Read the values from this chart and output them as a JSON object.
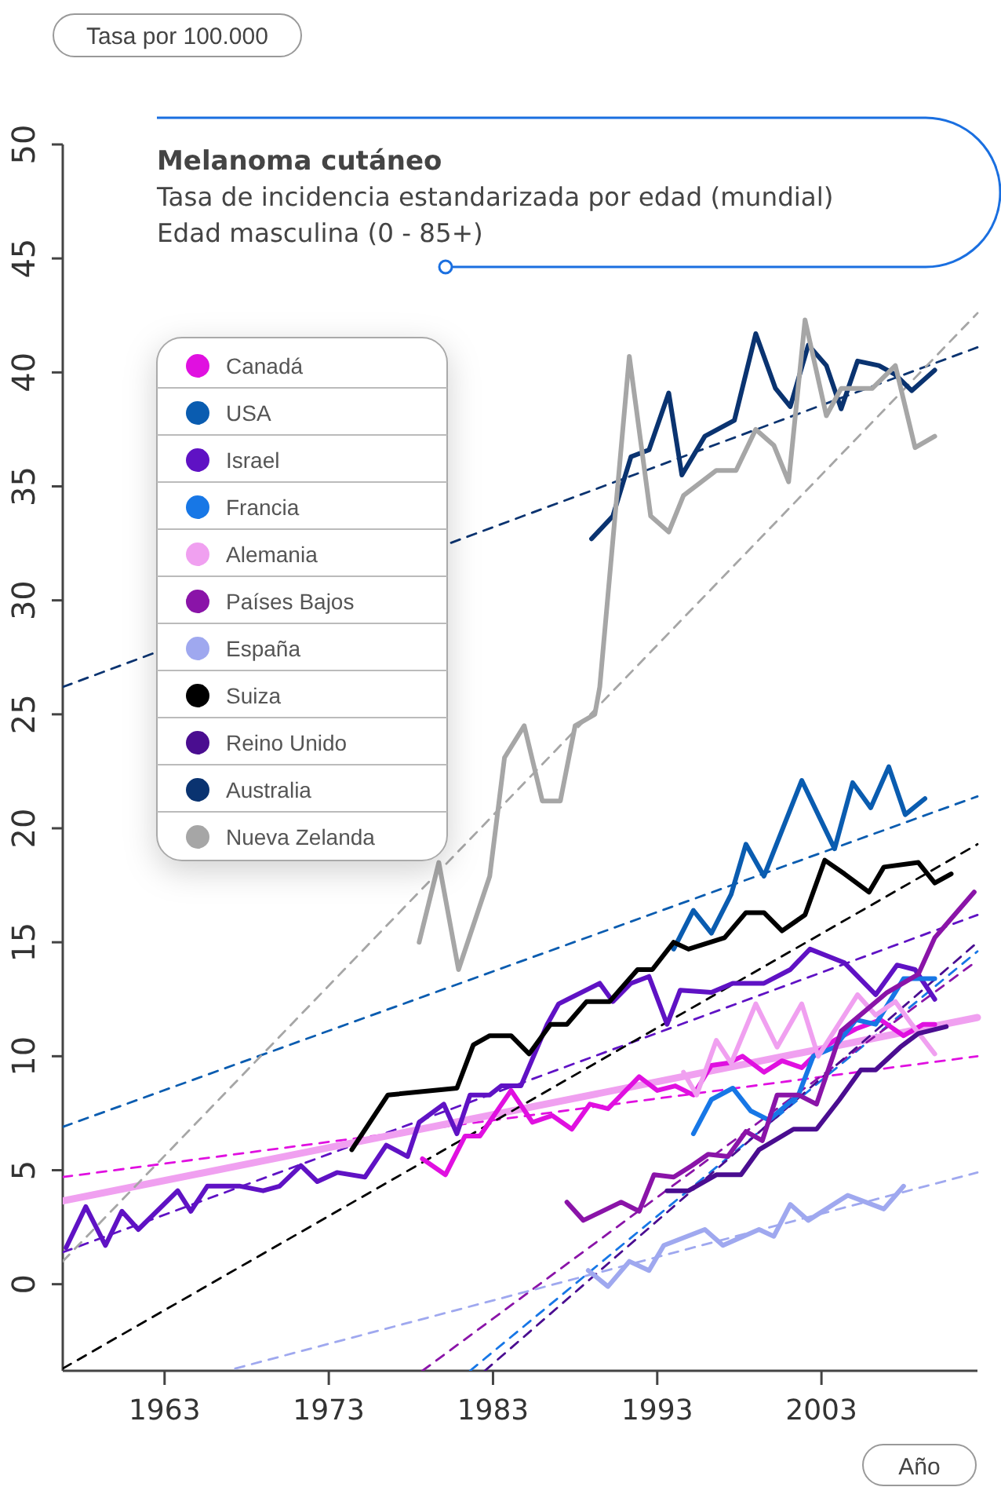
{
  "chart_data": {
    "type": "line",
    "title": "Melanoma cutáneo",
    "subtitle": "Tasa de incidencia estandarizada por edad (mundial)\nEdad masculina (0 - 85+)",
    "ylabel": "Tasa por 100.000",
    "xlabel": "Año",
    "xlim": [
      1956.8,
      2012.5
    ],
    "ylim": [
      -3.8,
      50
    ],
    "xticks": [
      1963,
      1973,
      1983,
      1993,
      2003
    ],
    "yticks": [
      0,
      5,
      10,
      15,
      20,
      25,
      30,
      35,
      40,
      45,
      50
    ],
    "grid": false,
    "legend": "top left",
    "line_style": "solid",
    "series": [
      {
        "color": "#e010e0",
        "line_style": "dashed",
        "x": [
          1956.8,
          2012.5
        ],
        "values": [
          4.7,
          10.0
        ]
      },
      {
        "color": "#0a5cb0",
        "line_style": "dashed",
        "x": [
          1956.8,
          2012.5
        ],
        "values": [
          6.9,
          21.4
        ]
      },
      {
        "color": "#5f12c4",
        "line_style": "dashed",
        "x": [
          1956.8,
          2012.5
        ],
        "values": [
          1.4,
          16.2
        ]
      },
      {
        "color": "#1777e6",
        "line_style": "dashed",
        "x": [
          1981.6,
          2012.5
        ],
        "values": [
          -3.8,
          14.6
        ]
      },
      {
        "color": "#f0a0f0",
        "line_style": "solid",
        "x": [
          1956.8,
          2012.5
        ],
        "values": [
          3.65,
          11.7
        ]
      },
      {
        "color": "#8a14a8",
        "line_style": "dashed",
        "x": [
          1978.7,
          2012.5
        ],
        "values": [
          -3.8,
          14.2
        ]
      },
      {
        "color": "#9fa8ef",
        "line_style": "dashed",
        "x": [
          1967.3,
          2012.5
        ],
        "values": [
          -3.7,
          4.9
        ]
      },
      {
        "color": "#000000",
        "line_style": "dashed",
        "x": [
          1956.8,
          2012.5
        ],
        "values": [
          -3.7,
          19.3
        ]
      },
      {
        "color": "#4a0d90",
        "line_style": "dashed",
        "x": [
          1982.5,
          2012.5
        ],
        "values": [
          -3.8,
          15.0
        ]
      },
      {
        "color": "#0a3370",
        "line_style": "dashed",
        "x": [
          1956.8,
          2012.5
        ],
        "values": [
          26.2,
          41.1
        ]
      },
      {
        "color": "#a6a6a6",
        "line_style": "dashed",
        "x": [
          1956.8,
          2012.5
        ],
        "values": [
          1.0,
          42.6
        ]
      },
      {
        "name": "Canadá",
        "color": "#e010e0",
        "x": [
          1978.7,
          1980.1,
          1981.3,
          1982.2,
          1984.1,
          1985.4,
          1986.6,
          1987.8,
          1988.9,
          1990,
          1991.9,
          1993,
          1994.1,
          1995.2,
          1996.3,
          1997.3,
          1998.2,
          1999.5,
          2000.6,
          2001.8,
          2002.8,
          2003.8,
          2005.1,
          2006.6,
          2008,
          2009.2,
          2009.9
        ],
        "values": [
          5.5,
          4.8,
          6.5,
          6.5,
          8.5,
          7.1,
          7.4,
          6.8,
          7.9,
          7.7,
          9.1,
          8.5,
          8.7,
          8.3,
          9.6,
          9.7,
          10.0,
          9.3,
          9.8,
          9.5,
          10.2,
          10.7,
          11.2,
          11.6,
          10.9,
          11.4,
          11.4
        ]
      },
      {
        "name": "USA",
        "color": "#0a5cb0",
        "x": [
          1994.0,
          1995.2,
          1996.3,
          1997.5,
          1998.4,
          1999.5,
          2001.8,
          2003.8,
          2004.9,
          2006.0,
          2007.1,
          2008.1,
          2009.3
        ],
        "values": [
          14.7,
          16.4,
          15.4,
          17.1,
          19.3,
          17.9,
          22.1,
          19.1,
          22.0,
          20.9,
          22.7,
          20.6,
          21.3
        ]
      },
      {
        "name": "Israel",
        "color": "#5f12c4",
        "x": [
          1957.0,
          1958.2,
          1959.4,
          1960.4,
          1961.4,
          1963.8,
          1964.6,
          1965.6,
          1967.6,
          1969.0,
          1970.0,
          1971.3,
          1972.3,
          1973.5,
          1975.2,
          1976.5,
          1977.8,
          1978.5,
          1980.0,
          1980.8,
          1981.6,
          1982.8,
          1983.5,
          1984.7,
          1986.3,
          1987.0,
          1989.5,
          1990.3,
          1991.4,
          1992.5,
          1993.6,
          1994.4,
          1996.3,
          1997.6,
          1999.5,
          2001.1,
          2002.3,
          2004.4,
          2006.3,
          2007.6,
          2008.7,
          2009.9
        ],
        "values": [
          1.6,
          3.4,
          1.7,
          3.2,
          2.4,
          4.1,
          3.2,
          4.3,
          4.3,
          4.1,
          4.3,
          5.2,
          4.5,
          4.9,
          4.7,
          6.1,
          5.6,
          7.1,
          7.9,
          6.6,
          8.3,
          8.3,
          8.7,
          8.7,
          11.4,
          12.3,
          13.2,
          12.4,
          13.2,
          13.5,
          11.4,
          12.9,
          12.8,
          13.2,
          13.2,
          13.8,
          14.7,
          14.1,
          12.7,
          14.0,
          13.8,
          12.5
        ]
      },
      {
        "name": "Francia",
        "color": "#1777e6",
        "x": [
          1995.2,
          1996.3,
          1997.6,
          1998.7,
          1999.8,
          2001.6,
          2002.5,
          2003.8,
          2005.1,
          2006.3,
          2008.0,
          2009.9
        ],
        "values": [
          6.6,
          8.1,
          8.6,
          7.6,
          7.2,
          8.3,
          10.0,
          10.4,
          11.6,
          11.4,
          13.4,
          13.4
        ]
      },
      {
        "name": "Alemania",
        "color": "#f0a0f0",
        "x": [
          1994.6,
          1995.4,
          1996.6,
          1997.5,
          1999.0,
          2000.3,
          2001.8,
          2002.8,
          2005.2,
          2006.3,
          2007.5,
          2008.5,
          2009.9
        ],
        "values": [
          9.3,
          8.3,
          10.7,
          9.7,
          12.3,
          10.4,
          12.3,
          10.0,
          12.7,
          11.8,
          12.4,
          11.4,
          10.1
        ]
      },
      {
        "name": "Países Bajos",
        "color": "#8a14a8",
        "x": [
          1987.5,
          1988.5,
          1990.8,
          1991.9,
          1992.8,
          1994.0,
          1995.1,
          1996.1,
          1997.3,
          1998.4,
          1999.4,
          2000.3,
          2001.6,
          2002.7,
          2003.7,
          2004.2,
          2007.0,
          2008.9,
          2009.9,
          2011.1,
          2012.3
        ],
        "values": [
          3.6,
          2.8,
          3.6,
          3.2,
          4.8,
          4.7,
          5.2,
          5.7,
          5.6,
          6.7,
          6.3,
          8.3,
          8.3,
          7.9,
          10.0,
          11.1,
          12.8,
          13.6,
          15.2,
          16.2,
          17.2
        ]
      },
      {
        "name": "España",
        "color": "#9fa8ef",
        "x": [
          1988.8,
          1990,
          1991.3,
          1992.5,
          1993.4,
          1995.9,
          1997,
          1999.2,
          2000.1,
          2001.1,
          2002.2,
          2004.6,
          2006.8,
          2008
        ],
        "values": [
          0.6,
          -0.1,
          1.0,
          0.6,
          1.7,
          2.4,
          1.7,
          2.4,
          2.1,
          3.5,
          2.8,
          3.9,
          3.3,
          4.3
        ]
      },
      {
        "name": "Suiza",
        "color": "#000000",
        "x": [
          1974.4,
          1976.6,
          1980.8,
          1981.8,
          1982.8,
          1984.1,
          1985.2,
          1986.5,
          1987.5,
          1988.7,
          1990.1,
          1991.8,
          1992.7,
          1994,
          1994.9,
          1997.1,
          1998.4,
          1999.5,
          2000.6,
          2002,
          2003.2,
          2004.4,
          2005.9,
          2006.8,
          2008.9,
          2009.9,
          2010.9
        ],
        "values": [
          5.9,
          8.3,
          8.6,
          10.5,
          10.9,
          10.9,
          10.1,
          11.4,
          11.4,
          12.4,
          12.4,
          13.8,
          13.8,
          15.0,
          14.7,
          15.2,
          16.3,
          16.3,
          15.5,
          16.2,
          18.6,
          18.0,
          17.2,
          18.3,
          18.5,
          17.6,
          18.0
        ]
      },
      {
        "name": "Reino Unido",
        "color": "#4a0d90",
        "x": [
          1993.6,
          1994.9,
          1996.6,
          1998.1,
          1999.2,
          2001.3,
          2002.7,
          2004.1,
          2005.4,
          2006.3,
          2007.8,
          2008.9,
          2010.6
        ],
        "values": [
          4.1,
          4.1,
          4.8,
          4.8,
          5.9,
          6.8,
          6.8,
          8.1,
          9.4,
          9.4,
          10.4,
          11.0,
          11.3
        ]
      },
      {
        "name": "Australia",
        "color": "#0a3370",
        "x": [
          1989.0,
          1990.3,
          1991.4,
          1992.5,
          1993.7,
          1994.5,
          1995.9,
          1997.7,
          1999.0,
          2000.2,
          2001.1,
          2002.2,
          2003.3,
          2004.2,
          2005.2,
          2006.5,
          2007.5,
          2008.5,
          2009.9
        ],
        "values": [
          32.7,
          33.7,
          36.3,
          36.6,
          39.1,
          35.5,
          37.2,
          37.9,
          41.7,
          39.3,
          38.5,
          41.2,
          40.3,
          38.4,
          40.5,
          40.3,
          39.9,
          39.2,
          40.1
        ]
      },
      {
        "name": "Nueva Zelanda",
        "color": "#a6a6a6",
        "x": [
          1978.5,
          1979.7,
          1980.9,
          1982.8,
          1983.7,
          1984.9,
          1986.0,
          1987.1,
          1988.0,
          1989.2,
          1989.5,
          1991.3,
          1992.6,
          1993.7,
          1994.6,
          1996.6,
          1997.8,
          1999.0,
          2000.1,
          2001.0,
          2002.0,
          2003.3,
          2004.2,
          2006.1,
          2007.5,
          2008.7,
          2009.9
        ],
        "values": [
          15.0,
          18.5,
          13.8,
          17.9,
          23.1,
          24.5,
          21.2,
          21.2,
          24.5,
          25.0,
          26.2,
          40.7,
          33.7,
          33.0,
          34.6,
          35.7,
          35.7,
          37.5,
          36.8,
          35.2,
          42.3,
          38.1,
          39.3,
          39.3,
          40.3,
          36.7,
          37.2
        ]
      }
    ]
  }
}
